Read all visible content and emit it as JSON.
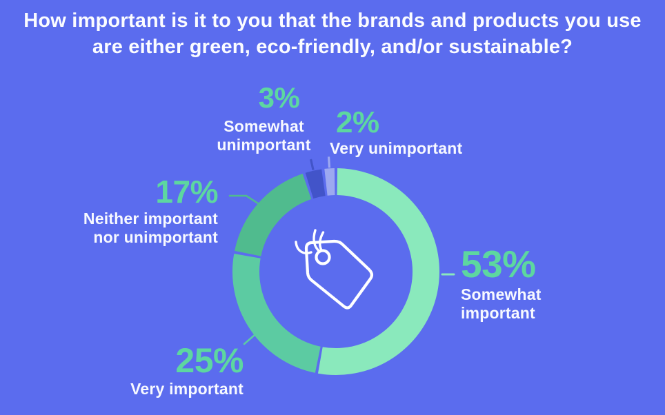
{
  "title": {
    "line1": "How important is it to you that the brands and products you use",
    "line2": "are either green, eco-friendly, and/or sustainable?"
  },
  "colors": {
    "background": "#5B6CEE",
    "title_text": "#FBFCFF",
    "label_text": "#F7F9FF",
    "percent_text": "#5DD7A0",
    "center_icon": "#FFFFFF"
  },
  "chart_data": {
    "type": "pie",
    "subtype": "donut",
    "units": "percent",
    "start_angle_deg": 0,
    "direction": "clockwise",
    "legend_position": "callouts-around-ring",
    "center_icon": "price-tag-icon",
    "segments": [
      {
        "label": "Somewhat important",
        "value": 53,
        "pct_label": "53%",
        "label_lines": [
          "Somewhat",
          "important"
        ],
        "color": "#8AE9BC"
      },
      {
        "label": "Very important",
        "value": 25,
        "pct_label": "25%",
        "label_lines": [
          "Very important"
        ],
        "color": "#5CCBA2"
      },
      {
        "label": "Neither important nor unimportant",
        "value": 17,
        "pct_label": "17%",
        "label_lines": [
          "Neither important",
          "nor unimportant"
        ],
        "color": "#50BB8E"
      },
      {
        "label": "Somewhat unimportant",
        "value": 3,
        "pct_label": "3%",
        "label_lines": [
          "Somewhat",
          "unimportant"
        ],
        "color": "#4254C9"
      },
      {
        "label": "Very unimportant",
        "value": 2,
        "pct_label": "2%",
        "label_lines": [
          "Very unimportant"
        ],
        "color": "#9DA9F0"
      }
    ]
  }
}
